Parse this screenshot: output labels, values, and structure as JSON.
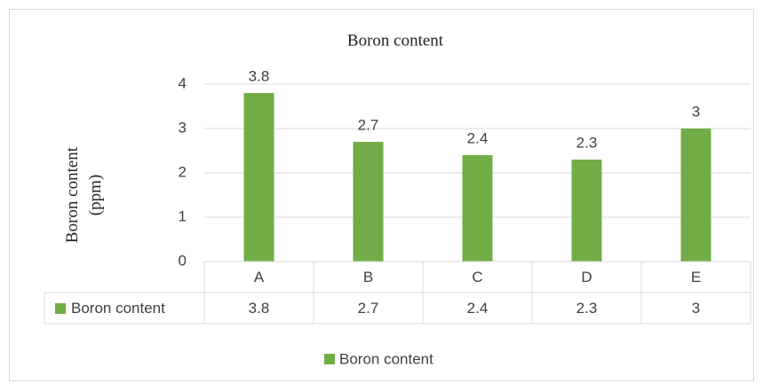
{
  "chart_data": {
    "type": "bar",
    "title": "Boron content",
    "ylabel": "Boron content (ppm)",
    "categories": [
      "A",
      "B",
      "C",
      "D",
      "E"
    ],
    "series": [
      {
        "name": "Boron content",
        "color": "#70ad47",
        "values": [
          3.8,
          2.7,
          2.4,
          2.3,
          3
        ]
      }
    ],
    "ylim": [
      0,
      4
    ],
    "yticks": [
      0,
      1,
      2,
      3,
      4
    ],
    "grid": true,
    "legend": "bottom",
    "data_table": true
  }
}
